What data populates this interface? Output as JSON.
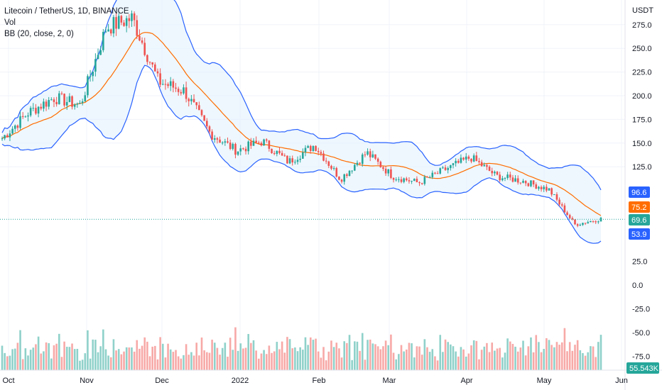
{
  "legend": {
    "title": "Litecoin / TetherUS, 1D, BINANCE",
    "vol_label": "Vol",
    "bb_label": "BB (20, close, 2, 0)"
  },
  "colors": {
    "up": "#26a69a",
    "down": "#ef5350",
    "bb_band": "#2962ff",
    "bb_basis": "#ff6d00",
    "bb_fill": "#e3f2fd",
    "vol_up": "#8fd1ca",
    "vol_down": "#f7a9a7",
    "last_price": "#26a69a"
  },
  "chart_data": {
    "type": "candlestick",
    "symbol": "Litecoin / TetherUS",
    "interval": "1D",
    "exchange": "BINANCE",
    "currency_label": "USDT",
    "x_labels": [
      "Oct",
      "Nov",
      "Dec",
      "2022",
      "Feb",
      "Mar",
      "Apr",
      "May",
      "Jun"
    ],
    "price_ticks": [
      "275.0",
      "250.0",
      "225.0",
      "200.0",
      "175.0",
      "150.0",
      "125.0"
    ],
    "volume_ticks": [
      "25.0",
      "0.0",
      "-25.0",
      "-50.0",
      "-75.0"
    ],
    "price_range": [
      38,
      295
    ],
    "close_path": [
      {
        "month": "Oct",
        "close": 155
      },
      {
        "month": "Oct",
        "close": 182
      },
      {
        "month": "Oct",
        "close": 198
      },
      {
        "month": "Nov",
        "close": 190
      },
      {
        "month": "Nov",
        "close": 272
      },
      {
        "month": "Nov",
        "close": 282
      },
      {
        "month": "Nov",
        "close": 215
      },
      {
        "month": "Dec",
        "close": 205
      },
      {
        "month": "Dec",
        "close": 160
      },
      {
        "month": "Dec",
        "close": 142
      },
      {
        "month": "2022",
        "close": 152
      },
      {
        "month": "2022",
        "close": 130
      },
      {
        "month": "2022",
        "close": 148
      },
      {
        "month": "Feb",
        "close": 112
      },
      {
        "month": "Feb",
        "close": 140
      },
      {
        "month": "Feb",
        "close": 115
      },
      {
        "month": "Mar",
        "close": 108
      },
      {
        "month": "Mar",
        "close": 122
      },
      {
        "month": "Apr",
        "close": 135
      },
      {
        "month": "Apr",
        "close": 115
      },
      {
        "month": "Apr",
        "close": 110
      },
      {
        "month": "May",
        "close": 101
      },
      {
        "month": "May",
        "close": 64
      },
      {
        "month": "May",
        "close": 70
      }
    ],
    "bollinger": {
      "period": 20,
      "source": "close",
      "stddev": 2,
      "offset": 0,
      "upper_last": 96.6,
      "basis_last": 75.2,
      "lower_last": 53.9
    },
    "last_price": 69.6,
    "last_volume": "55.543K",
    "price_badges": [
      "96.6",
      "75.2",
      "69.6",
      "53.9"
    ]
  }
}
